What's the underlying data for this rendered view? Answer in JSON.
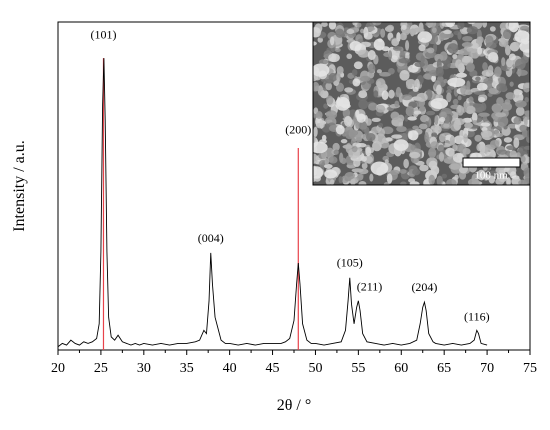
{
  "chart_data": {
    "type": "line",
    "xlabel": "2θ / °",
    "ylabel": "Intensity / a.u.",
    "xlim": [
      20,
      75
    ],
    "xticks": [
      20,
      25,
      30,
      35,
      40,
      45,
      50,
      55,
      60,
      65,
      70,
      75
    ],
    "ylim": [
      0,
      100
    ],
    "color": "#000000",
    "x": [
      20,
      20.5,
      21,
      21.5,
      22,
      22.5,
      23,
      23.5,
      24,
      24.5,
      24.8,
      25,
      25.2,
      25.35,
      25.5,
      25.7,
      25.9,
      26.2,
      26.6,
      27,
      27.5,
      28,
      28.5,
      29,
      29.5,
      30,
      31,
      32,
      33,
      34,
      35,
      36,
      36.5,
      37,
      37.3,
      37.6,
      37.8,
      38,
      38.3,
      38.6,
      39,
      39.5,
      40,
      41,
      42,
      43,
      44,
      45,
      46,
      46.5,
      47,
      47.5,
      47.8,
      48,
      48.2,
      48.5,
      49,
      49.5,
      50,
      51,
      52,
      53,
      53.5,
      53.8,
      54,
      54.2,
      54.5,
      54.8,
      55,
      55.2,
      55.5,
      56,
      57,
      58,
      59,
      60,
      61,
      61.8,
      62.2,
      62.5,
      62.7,
      62.9,
      63.2,
      63.7,
      64,
      65,
      66,
      67,
      68,
      68.5,
      68.8,
      69,
      69.3,
      70
    ],
    "values": [
      1,
      2,
      1.5,
      3,
      2,
      1.5,
      2.5,
      2,
      2.5,
      3.5,
      8,
      30,
      75,
      89,
      70,
      30,
      10,
      4,
      3,
      4.5,
      2.5,
      2,
      1.5,
      2,
      1.5,
      2,
      1.5,
      2,
      1.5,
      2,
      2,
      2.5,
      3,
      6,
      5,
      15,
      29.6,
      20,
      10,
      7,
      3,
      2,
      2,
      1.5,
      2,
      1.5,
      2,
      2,
      2,
      2.5,
      3.5,
      9,
      20,
      26.5,
      20,
      8,
      3,
      2,
      2,
      1.5,
      2,
      2.5,
      6,
      15,
      22,
      14,
      8,
      13,
      15,
      12,
      5,
      2.5,
      2,
      1.5,
      2,
      1.5,
      2,
      3,
      8,
      13,
      14.6,
      12,
      5,
      2.5,
      2,
      1.5,
      2,
      1.5,
      2,
      3,
      6,
      5,
      2,
      1.5
    ],
    "reference_lines": [
      {
        "x": 25.3,
        "value": 89,
        "color": "#e8424a"
      },
      {
        "x": 48.0,
        "value": 61.6,
        "color": "#e8424a"
      }
    ],
    "annotations": [
      {
        "text": "(101)",
        "x": 25.3,
        "y": 95
      },
      {
        "text": "(004)",
        "x": 37.8,
        "y": 33
      },
      {
        "text": "(200)",
        "x": 48.0,
        "y": 66
      },
      {
        "text": "(105)",
        "x": 54.0,
        "y": 25.5
      },
      {
        "text": "(211)",
        "x": 56.3,
        "y": 18.2
      },
      {
        "text": "(204)",
        "x": 62.7,
        "y": 18
      },
      {
        "text": "(116)",
        "x": 68.8,
        "y": 9
      }
    ],
    "inset_scale_label": "100 nm"
  }
}
